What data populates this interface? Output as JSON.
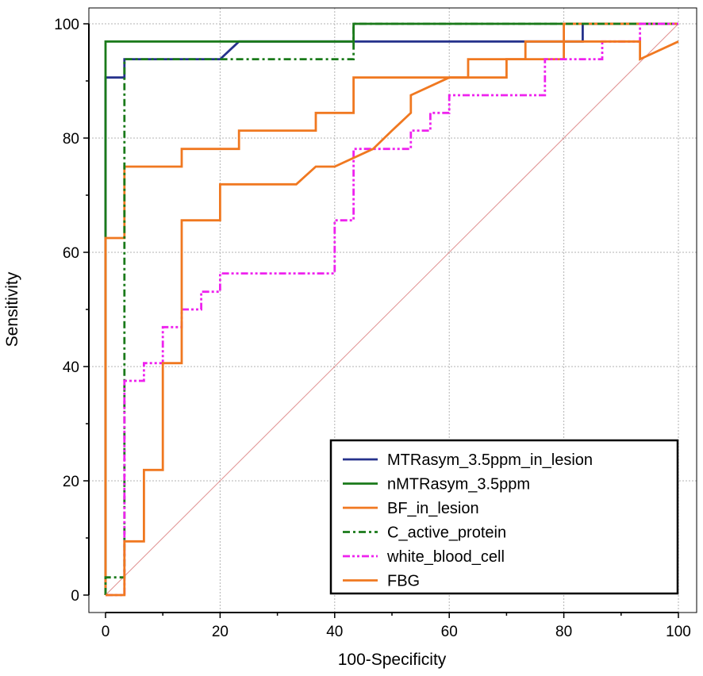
{
  "chart_data": {
    "type": "line",
    "title": "",
    "xlabel": "100-Specificity",
    "ylabel": "Sensitivity",
    "xlim": [
      0,
      100
    ],
    "ylim": [
      0,
      100
    ],
    "xticks": [
      0,
      20,
      40,
      60,
      80,
      100
    ],
    "yticks": [
      0,
      20,
      40,
      60,
      80,
      100
    ],
    "grid": true,
    "legend_position": "bottom-right",
    "reference_line": {
      "name": "chance",
      "color": "#e09090",
      "x": [
        0,
        100
      ],
      "y": [
        0,
        100
      ]
    },
    "series": [
      {
        "name": "MTRasym_3.5ppm_in_lesion",
        "color": "#26328c",
        "dash": "solid",
        "step": true,
        "x": [
          0,
          0,
          3.3,
          3.3,
          20,
          23.3,
          83.3,
          83.3,
          100
        ],
        "y": [
          0,
          90.6,
          90.6,
          93.8,
          93.8,
          96.9,
          96.9,
          100,
          100
        ]
      },
      {
        "name": "nMTRasym_3.5ppm",
        "color": "#1a7a1a",
        "dash": "solid",
        "step": true,
        "x": [
          0,
          0,
          43.3,
          43.3,
          100
        ],
        "y": [
          0,
          96.9,
          96.9,
          100,
          100
        ]
      },
      {
        "name": "BF_in_lesion",
        "color": "#f07820",
        "dash": "solid",
        "step": true,
        "x": [
          0,
          0,
          3.3,
          3.3,
          13.3,
          13.3,
          23.3,
          23.3,
          36.7,
          36.7,
          43.3,
          43.3,
          60,
          63.3,
          63.3,
          80,
          80,
          100
        ],
        "y": [
          0,
          62.5,
          62.5,
          75,
          75,
          78.1,
          78.1,
          81.3,
          81.3,
          84.4,
          84.4,
          90.6,
          90.6,
          90.6,
          93.8,
          93.8,
          100,
          100
        ]
      },
      {
        "name": "C_active_protein",
        "color": "#1a7a1a",
        "dash": "dashdot",
        "step": true,
        "x": [
          0,
          0,
          3.3,
          3.3,
          43.3,
          43.3,
          100
        ],
        "y": [
          0,
          3.1,
          3.1,
          93.8,
          93.8,
          100,
          100
        ]
      },
      {
        "name": "white_blood_cell",
        "color": "#ee22ee",
        "dash": "dashdotdot",
        "step": true,
        "x": [
          0,
          3.3,
          3.3,
          6.7,
          6.7,
          10,
          10,
          13.3,
          13.3,
          16.7,
          16.7,
          20,
          20,
          40,
          40,
          43.3,
          43.3,
          53.3,
          53.3,
          56.7,
          56.7,
          60,
          60,
          76.7,
          76.7,
          86.7,
          86.7,
          93.3,
          93.3,
          100
        ],
        "y": [
          0,
          0,
          37.5,
          37.5,
          40.6,
          40.6,
          46.9,
          46.9,
          50,
          50,
          53.1,
          53.1,
          56.3,
          56.3,
          65.6,
          65.6,
          78.1,
          78.1,
          81.3,
          81.3,
          84.4,
          84.4,
          87.5,
          87.5,
          93.8,
          93.8,
          96.9,
          96.9,
          100,
          100
        ]
      },
      {
        "name": "FBG",
        "color": "#f07820",
        "dash": "solid",
        "step": true,
        "x": [
          0,
          3.3,
          3.3,
          6.7,
          6.7,
          10,
          10,
          13.3,
          13.3,
          20,
          20,
          33.3,
          36.7,
          40,
          46.7,
          50,
          53.3,
          53.3,
          60,
          70,
          70,
          73.3,
          73.3,
          93.3,
          93.3,
          100,
          100
        ],
        "y": [
          0,
          0,
          9.4,
          9.4,
          21.9,
          21.9,
          40.6,
          40.6,
          65.6,
          65.6,
          71.9,
          71.9,
          75,
          75,
          78.1,
          81.3,
          84.4,
          87.5,
          90.6,
          90.6,
          93.8,
          93.8,
          96.9,
          96.9,
          93.8,
          96.9,
          96.9
        ]
      }
    ]
  }
}
